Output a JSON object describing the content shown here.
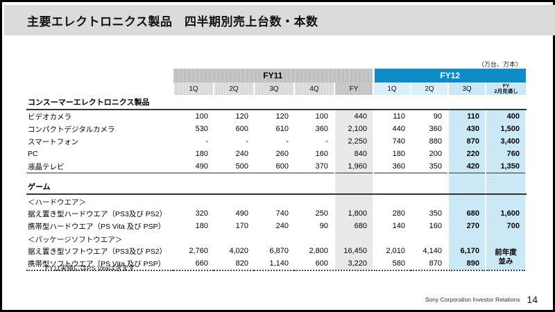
{
  "slide": {
    "title": "主要エレクトロニクス製品　四半期別売上台数・本数",
    "unit_note": "（万台、万本）",
    "footnote": "FY11実績にはPS Vitaは含まず",
    "footer_text": "Sony Corporation  Investor Relations",
    "page_number": "14"
  },
  "colors": {
    "fy12_blue": "#0e8cc7",
    "band_blue": "#c9e8f6",
    "band_gray": "#e7e7e7",
    "fy11_gray": "#c3c3c3",
    "quarter_gray": "#dcdcdc",
    "title_bg": "#dbdbdb"
  },
  "table": {
    "group_headers": [
      {
        "label": "FY11"
      },
      {
        "label": "FY12"
      }
    ],
    "quarter_headers": [
      "1Q",
      "2Q",
      "3Q",
      "4Q",
      "FY",
      "1Q",
      "2Q",
      "3Q"
    ],
    "fy12_fy_header": {
      "line1": "FY",
      "line2": "2月見通し"
    },
    "sections": [
      {
        "title": "コンスーマーエレクトロニクス製品",
        "rows": [
          {
            "label": "ビデオカメラ",
            "values": [
              "100",
              "120",
              "120",
              "100",
              "440",
              "110",
              "90",
              "110",
              "400"
            ]
          },
          {
            "label": "コンパクトデジタルカメラ",
            "values": [
              "530",
              "600",
              "610",
              "360",
              "2,100",
              "440",
              "360",
              "430",
              "1,500"
            ]
          },
          {
            "label": "スマートフォン",
            "values": [
              "-",
              "-",
              "-",
              "-",
              "2,250",
              "740",
              "880",
              "870",
              "3,400"
            ]
          },
          {
            "label": "PC",
            "values": [
              "180",
              "240",
              "260",
              "160",
              "840",
              "180",
              "200",
              "220",
              "760"
            ]
          },
          {
            "label": "液晶テレビ",
            "values": [
              "490",
              "500",
              "600",
              "370",
              "1,960",
              "360",
              "350",
              "420",
              "1,350"
            ]
          }
        ]
      },
      {
        "title": "ゲーム",
        "rows": [
          {
            "sublabel": "＜ハードウエア＞"
          },
          {
            "label": "据え置き型ハードウエア（PS3及び PS2）",
            "values": [
              "320",
              "490",
              "740",
              "250",
              "1,800",
              "280",
              "350",
              "680",
              "1,600"
            ]
          },
          {
            "label": "携帯型ハードウエア（PS Vita 及び PSP）",
            "values": [
              "180",
              "170",
              "240",
              "90",
              "680",
              "140",
              "160",
              "270",
              "700"
            ]
          },
          {
            "sublabel": "＜パッケージソフトウエア＞"
          },
          {
            "label": "据え置き型ソフトウエア（PS3及び PS2）",
            "values": [
              "2,760",
              "4,020",
              "6,870",
              "2,800",
              "16,450",
              "2,010",
              "4,140",
              "6,170"
            ],
            "merged": {
              "line1": "前年度",
              "line2": "並み",
              "rowspan": 2
            }
          },
          {
            "label": "携帯型ソフトウエア（PS Vita 及び PSP）",
            "values": [
              "660",
              "820",
              "1,140",
              "600",
              "3,220",
              "580",
              "870",
              "890"
            ]
          }
        ]
      }
    ]
  },
  "chart_data": {
    "type": "table",
    "title": "主要エレクトロニクス製品　四半期別売上台数・本数",
    "unit": "万台、万本",
    "columns": [
      "FY11 1Q",
      "FY11 2Q",
      "FY11 3Q",
      "FY11 4Q",
      "FY11 FY",
      "FY12 1Q",
      "FY12 2Q",
      "FY12 3Q",
      "FY12 FY 2月見通し"
    ],
    "rows": [
      {
        "category": "コンスーマーエレクトロニクス製品",
        "item": "ビデオカメラ",
        "values": [
          100,
          120,
          120,
          100,
          440,
          110,
          90,
          110,
          400
        ]
      },
      {
        "category": "コンスーマーエレクトロニクス製品",
        "item": "コンパクトデジタルカメラ",
        "values": [
          530,
          600,
          610,
          360,
          2100,
          440,
          360,
          430,
          1500
        ]
      },
      {
        "category": "コンスーマーエレクトロニクス製品",
        "item": "スマートフォン",
        "values": [
          null,
          null,
          null,
          null,
          2250,
          740,
          880,
          870,
          3400
        ]
      },
      {
        "category": "コンスーマーエレクトロニクス製品",
        "item": "PC",
        "values": [
          180,
          240,
          260,
          160,
          840,
          180,
          200,
          220,
          760
        ]
      },
      {
        "category": "コンスーマーエレクトロニクス製品",
        "item": "液晶テレビ",
        "values": [
          490,
          500,
          600,
          370,
          1960,
          360,
          350,
          420,
          1350
        ]
      },
      {
        "category": "ゲーム ＜ハードウエア＞",
        "item": "据え置き型ハードウエア（PS3及び PS2）",
        "values": [
          320,
          490,
          740,
          250,
          1800,
          280,
          350,
          680,
          1600
        ]
      },
      {
        "category": "ゲーム ＜ハードウエア＞",
        "item": "携帯型ハードウエア（PS Vita 及び PSP）",
        "values": [
          180,
          170,
          240,
          90,
          680,
          140,
          160,
          270,
          700
        ]
      },
      {
        "category": "ゲーム ＜パッケージソフトウエア＞",
        "item": "据え置き型ソフトウエア（PS3及び PS2）",
        "values": [
          2760,
          4020,
          6870,
          2800,
          16450,
          2010,
          4140,
          6170,
          "前年度並み"
        ]
      },
      {
        "category": "ゲーム ＜パッケージソフトウエア＞",
        "item": "携帯型ソフトウエア（PS Vita 及び PSP）",
        "values": [
          660,
          820,
          1140,
          600,
          3220,
          580,
          870,
          890,
          "前年度並み"
        ]
      }
    ]
  }
}
